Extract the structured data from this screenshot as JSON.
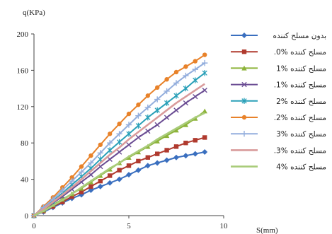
{
  "chart_data": {
    "type": "line",
    "ylabel": "q(KPa)",
    "xlabel": "S(mm)",
    "xlim": [
      0,
      10
    ],
    "ylim": [
      0,
      200
    ],
    "xticks": [
      0,
      5,
      10
    ],
    "yticks": [
      0,
      40,
      80,
      120,
      160,
      200
    ],
    "grid": false,
    "legend_position": "right",
    "series": [
      {
        "name": "بدون مسلح کننده",
        "color": "#3a6fbf",
        "marker": "diamond",
        "x": [
          0,
          0.5,
          1,
          1.5,
          2,
          2.5,
          3,
          3.5,
          4,
          4.5,
          5,
          5.5,
          6,
          6.5,
          7,
          7.5,
          8,
          8.5,
          9
        ],
        "y": [
          0,
          4,
          9,
          14,
          19,
          23,
          28,
          32,
          36,
          40,
          45,
          50,
          55,
          58,
          61,
          64,
          66,
          68,
          70
        ]
      },
      {
        "name": ".0% مسلح کننده",
        "color": "#b03a2e",
        "marker": "square",
        "x": [
          0,
          0.5,
          1,
          1.5,
          2,
          2.5,
          3,
          3.5,
          4,
          4.5,
          5,
          5.5,
          6,
          6.5,
          7,
          7.5,
          8,
          8.5,
          9
        ],
        "y": [
          0,
          5,
          10,
          15,
          21,
          26,
          32,
          38,
          44,
          50,
          55,
          60,
          64,
          68,
          72,
          76,
          80,
          83,
          86
        ]
      },
      {
        "name": "1% مسلح کننده",
        "color": "#8db33a",
        "marker": "triangle",
        "x": [
          0,
          0.5,
          1,
          1.5,
          2,
          2.5,
          3,
          3.5,
          4,
          4.5,
          5,
          5.5,
          6,
          6.5,
          7,
          7.5,
          8,
          8.5,
          9
        ],
        "y": [
          0,
          6,
          12,
          18,
          24,
          30,
          37,
          44,
          51,
          58,
          64,
          70,
          76,
          82,
          88,
          94,
          100,
          107,
          115
        ]
      },
      {
        "name": ".1% مسلح کننده",
        "color": "#6a4c93",
        "marker": "x",
        "x": [
          0,
          0.5,
          1,
          1.5,
          2,
          2.5,
          3,
          3.5,
          4,
          4.5,
          5,
          5.5,
          6,
          6.5,
          7,
          7.5,
          8,
          8.5,
          9
        ],
        "y": [
          0,
          7,
          14,
          21,
          29,
          37,
          45,
          54,
          62,
          70,
          78,
          86,
          93,
          100,
          108,
          116,
          124,
          131,
          138
        ]
      },
      {
        "name": "2% مسلح کننده",
        "color": "#2aa0b8",
        "marker": "asterisk",
        "x": [
          0,
          0.5,
          1,
          1.5,
          2,
          2.5,
          3,
          3.5,
          4,
          4.5,
          5,
          5.5,
          6,
          6.5,
          7,
          7.5,
          8,
          8.5,
          9
        ],
        "y": [
          0,
          8,
          16,
          25,
          34,
          43,
          52,
          62,
          72,
          81,
          90,
          99,
          108,
          116,
          124,
          132,
          140,
          149,
          157
        ]
      },
      {
        "name": ".2% مسلح کننده",
        "color": "#e8822a",
        "marker": "circle",
        "x": [
          0,
          0.5,
          1,
          1.5,
          2,
          2.5,
          3,
          3.5,
          4,
          4.5,
          5,
          5.5,
          6,
          6.5,
          7,
          7.5,
          8,
          8.5,
          9
        ],
        "y": [
          0,
          10,
          20,
          31,
          42,
          54,
          66,
          78,
          90,
          101,
          112,
          122,
          132,
          141,
          150,
          158,
          164,
          170,
          177
        ]
      },
      {
        "name": "3% مسلح کننده",
        "color": "#93aedd",
        "marker": "plus",
        "x": [
          0,
          0.5,
          1,
          1.5,
          2,
          2.5,
          3,
          3.5,
          4,
          4.5,
          5,
          5.5,
          6,
          6.5,
          7,
          7.5,
          8,
          8.5,
          9
        ],
        "y": [
          0,
          9,
          18,
          28,
          38,
          48,
          58,
          69,
          80,
          90,
          100,
          110,
          119,
          128,
          137,
          146,
          154,
          161,
          168
        ]
      },
      {
        "name": ".3% مسلح کننده",
        "color": "#d99b9b",
        "marker": "none",
        "x": [
          0,
          0.5,
          1,
          1.5,
          2,
          2.5,
          3,
          3.5,
          4,
          4.5,
          5,
          5.5,
          6,
          6.5,
          7,
          7.5,
          8,
          8.5,
          9
        ],
        "y": [
          0,
          7,
          15,
          23,
          31,
          40,
          49,
          58,
          67,
          75,
          84,
          92,
          100,
          108,
          116,
          124,
          131,
          138,
          145
        ]
      },
      {
        "name": "4% مسلح کننده",
        "color": "#a9cc7a",
        "marker": "none",
        "x": [
          0,
          0.5,
          1,
          1.5,
          2,
          2.5,
          3,
          3.5,
          4,
          4.5,
          5,
          5.5,
          6,
          6.5,
          7,
          7.5,
          8,
          8.5,
          9
        ],
        "y": [
          0,
          5,
          11,
          17,
          24,
          31,
          38,
          45,
          52,
          58,
          65,
          71,
          77,
          84,
          90,
          96,
          102,
          108,
          113
        ]
      }
    ]
  }
}
